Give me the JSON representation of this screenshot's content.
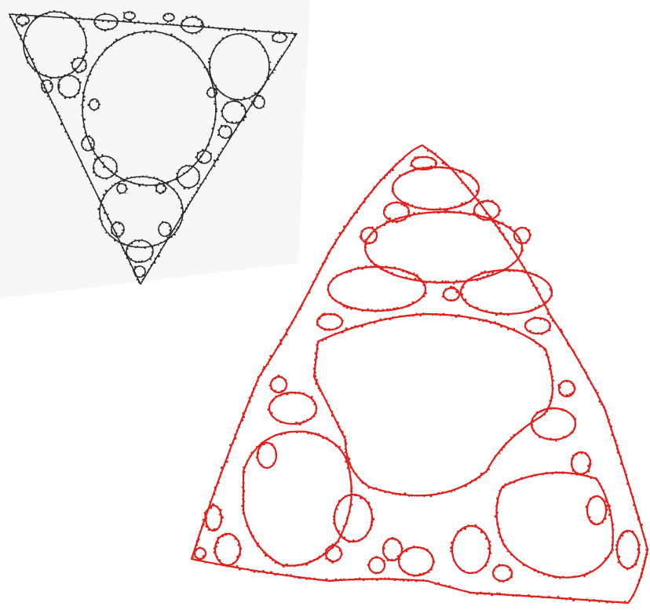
{
  "image": {
    "fractals": [
      {
        "name": "black-gasket",
        "stroke_color": "#2a2a2a",
        "background_tint": "#f7f7f7"
      },
      {
        "name": "red-gasket",
        "stroke_color": "#e0201c"
      }
    ]
  }
}
